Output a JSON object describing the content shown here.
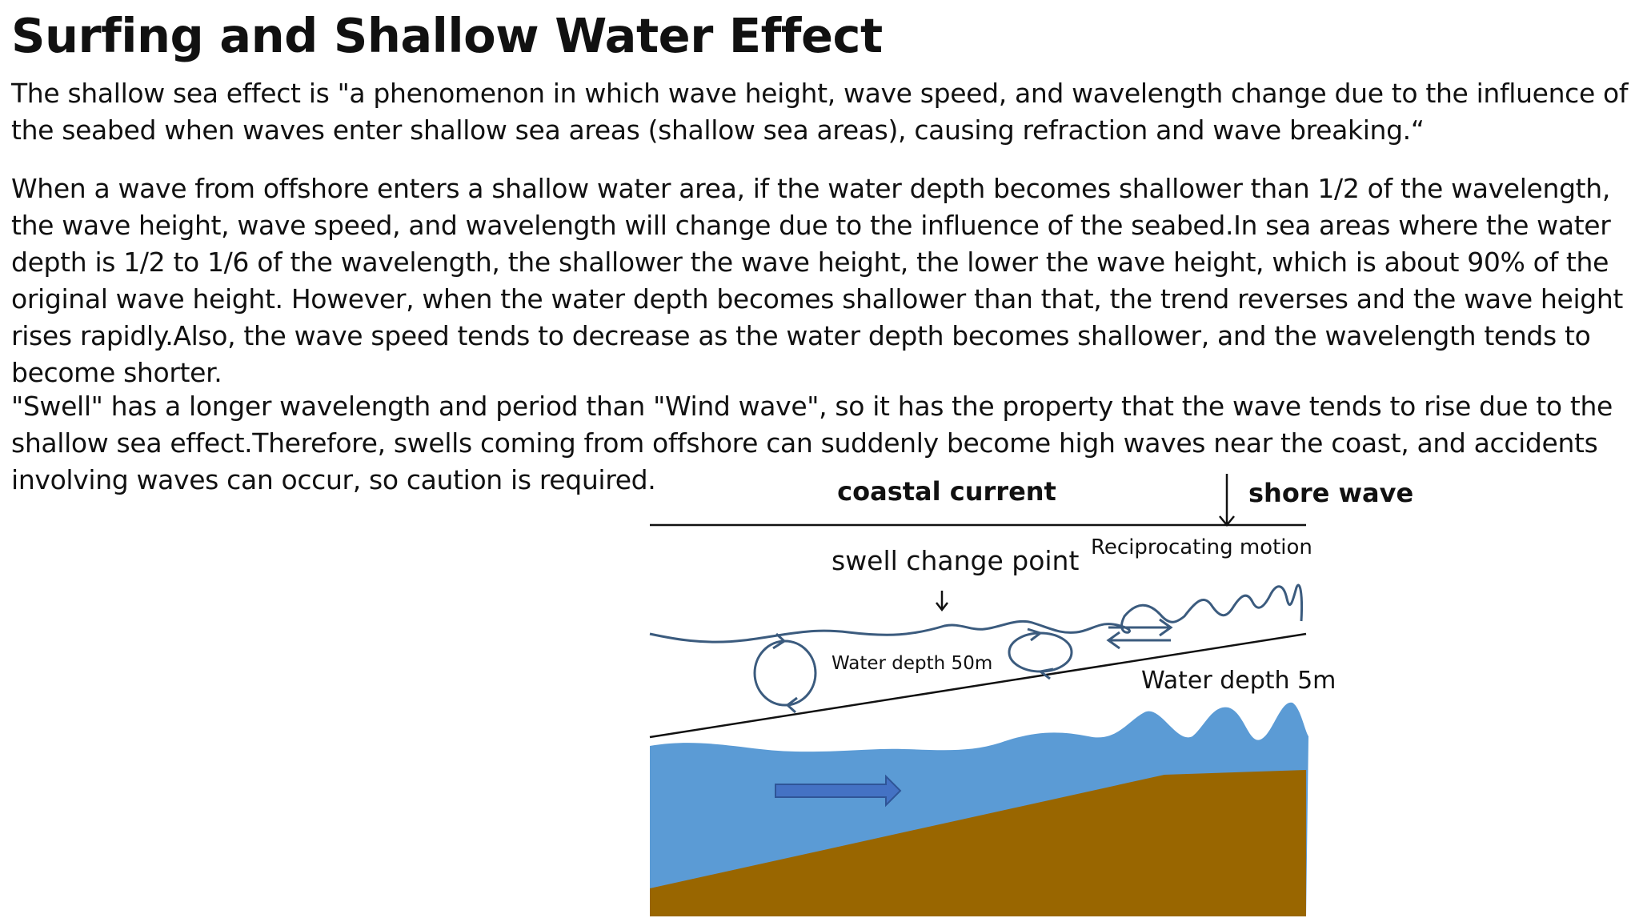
{
  "page": {
    "title": "Surfing and Shallow Water Effect",
    "paragraphs": [
      "The shallow sea effect is \"a phenomenon in which wave height, wave speed, and wavelength change due to the influence of the seabed when waves enter shallow sea areas (shallow sea areas), causing refraction and wave breaking.“",
      "When a wave from offshore enters a shallow water area, if the water depth becomes shallower than 1/2 of the wavelength, the wave height, wave speed, and wavelength will change due to the influence of the seabed.In sea areas where the water depth is 1/2 to 1/6 of the wavelength, the shallower the wave height, the lower the wave height, which is about 90% of the original wave height.   However, when the water depth becomes shallower than that, the trend reverses and the wave height rises rapidly.Also, the wave speed tends to decrease as the water depth becomes shallower, and the wavelength tends to become shorter.",
      " \"Swell\" has a longer wavelength and period than \"Wind wave\", so it has the property that the wave tends to rise due to the shallow sea effect.Therefore, swells coming from offshore can suddenly become high waves near the coast, and accidents involving waves can occur, so caution is required."
    ]
  },
  "diagram": {
    "labels": {
      "coastal_current": "coastal current",
      "shore_wave": "shore wave",
      "reciprocating_motion": "Reciprocating motion",
      "swell_change_point": "swell change point",
      "depth_50m": "Water depth 50m",
      "depth_5m": "Water depth 5m"
    },
    "colors": {
      "water": "#5b9bd5",
      "seabed": "#996600",
      "arrow_fill": "#4472c4",
      "arrow_stroke": "#2f5597",
      "wave_line": "#3b5b7e",
      "ink": "#111111"
    }
  }
}
